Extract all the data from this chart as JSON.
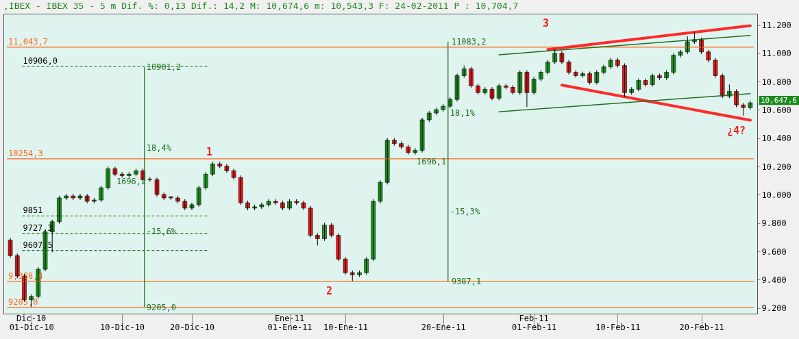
{
  "chart_data": {
    "type": "candlestick",
    "title": ",IBEX - IBEX 35 -  5 m Dif. %: 0,13 Dif.: 14,2 M: 10,674,6 m: 10,543,3 F: 24-02-2011 P : 10,704,7",
    "categories": [
      null,
      null,
      null,
      "01-Dic-10",
      null,
      null,
      null,
      null,
      null,
      null,
      null,
      null,
      null,
      null,
      null,
      null,
      "10-Dic-10",
      null,
      null,
      null,
      null,
      null,
      null,
      null,
      null,
      null,
      "20-Dic-10",
      null,
      null,
      null,
      null,
      null,
      null,
      null,
      null,
      null,
      null,
      null,
      null,
      null,
      "01-Ene-11",
      null,
      null,
      null,
      null,
      null,
      null,
      null,
      "10-Ene-11",
      null,
      null,
      null,
      null,
      null,
      null,
      null,
      null,
      null,
      null,
      null,
      null,
      null,
      "20-Ene-11",
      null,
      null,
      null,
      null,
      null,
      null,
      null,
      null,
      null,
      null,
      null,
      null,
      "01-Feb-11",
      null,
      null,
      null,
      null,
      null,
      null,
      null,
      null,
      null,
      null,
      null,
      "10-Feb-11",
      null,
      null,
      null,
      null,
      null,
      null,
      null,
      null,
      null,
      null,
      null,
      "20-Feb-11",
      null,
      null,
      null,
      null,
      null,
      null,
      null
    ],
    "ohlc": [
      [
        9680,
        9695,
        9555,
        9570
      ],
      [
        9570,
        9585,
        9411,
        9426
      ],
      [
        9426,
        9441,
        9243,
        9258
      ],
      [
        9258,
        9297,
        9205,
        9282
      ],
      [
        9282,
        9489,
        9267,
        9474
      ],
      [
        9474,
        9753,
        9459,
        9738
      ],
      [
        9738,
        9825,
        9594,
        9810
      ],
      [
        9810,
        9993,
        9795,
        9978
      ],
      [
        9978,
        10007,
        9963,
        9992
      ],
      [
        9992,
        10007,
        9963,
        9978
      ],
      [
        9978,
        10007,
        9963,
        9992
      ],
      [
        9992,
        10007,
        9939,
        9954
      ],
      [
        9954,
        9978,
        9939,
        9963
      ],
      [
        9963,
        10065,
        9948,
        10050
      ],
      [
        10050,
        10199,
        10035,
        10184
      ],
      [
        10184,
        10199,
        10131,
        10146
      ],
      [
        10146,
        10161,
        10121,
        10136
      ],
      [
        10136,
        10161,
        10121,
        10146
      ],
      [
        10146,
        10185,
        10131,
        10170
      ],
      [
        10170,
        10185,
        10092,
        10107
      ],
      [
        10110,
        10125,
        10092,
        10107
      ],
      [
        10107,
        10122,
        9987,
        10002
      ],
      [
        10002,
        10017,
        9963,
        9978
      ],
      [
        9985,
        9993,
        9963,
        9978
      ],
      [
        9978,
        9993,
        9939,
        9954
      ],
      [
        9954,
        9969,
        9891,
        9906
      ],
      [
        9906,
        9945,
        9891,
        9930
      ],
      [
        9930,
        10065,
        9915,
        10050
      ],
      [
        10050,
        10161,
        10035,
        10146
      ],
      [
        10146,
        10233,
        10131,
        10218
      ],
      [
        10218,
        10233,
        10188,
        10203
      ],
      [
        10203,
        10218,
        10155,
        10170
      ],
      [
        10170,
        10185,
        10107,
        10122
      ],
      [
        10122,
        10137,
        9929,
        9944
      ],
      [
        9944,
        9959,
        9891,
        9906
      ],
      [
        9906,
        9930,
        9891,
        9915
      ],
      [
        9915,
        9945,
        9900,
        9930
      ],
      [
        9930,
        9969,
        9915,
        9954
      ],
      [
        9954,
        9969,
        9929,
        9944
      ],
      [
        9944,
        9959,
        9891,
        9906
      ],
      [
        9906,
        9969,
        9891,
        9954
      ],
      [
        9954,
        9969,
        9929,
        9944
      ],
      [
        9944,
        9959,
        9891,
        9906
      ],
      [
        9906,
        9921,
        9699,
        9714
      ],
      [
        9714,
        9729,
        9642,
        9690
      ],
      [
        9690,
        9801,
        9675,
        9786
      ],
      [
        9786,
        9801,
        9699,
        9714
      ],
      [
        9714,
        9729,
        9531,
        9546
      ],
      [
        9546,
        9561,
        9435,
        9450
      ],
      [
        9450,
        9465,
        9390,
        9435
      ],
      [
        9435,
        9465,
        9420,
        9450
      ],
      [
        9450,
        9561,
        9435,
        9546
      ],
      [
        9546,
        9969,
        9531,
        9954
      ],
      [
        9954,
        10103,
        9939,
        10088
      ],
      [
        10088,
        10401,
        10073,
        10386
      ],
      [
        10386,
        10401,
        10347,
        10362
      ],
      [
        10362,
        10377,
        10323,
        10338
      ],
      [
        10338,
        10353,
        10284,
        10299
      ],
      [
        10299,
        10329,
        10284,
        10314
      ],
      [
        10314,
        10545,
        10299,
        10530
      ],
      [
        10530,
        10593,
        10515,
        10578
      ],
      [
        10578,
        10617,
        10563,
        10602
      ],
      [
        10602,
        10641,
        10587,
        10626
      ],
      [
        10626,
        10689,
        10611,
        10674
      ],
      [
        10674,
        10857,
        10659,
        10842
      ],
      [
        10842,
        10914,
        10827,
        10890
      ],
      [
        10890,
        10905,
        10755,
        10770
      ],
      [
        10770,
        10785,
        10707,
        10722
      ],
      [
        10722,
        10761,
        10707,
        10746
      ],
      [
        10746,
        10761,
        10668,
        10683
      ],
      [
        10683,
        10785,
        10668,
        10770
      ],
      [
        10770,
        10785,
        10745,
        10760
      ],
      [
        10760,
        10775,
        10707,
        10722
      ],
      [
        10722,
        10881,
        10707,
        10866
      ],
      [
        10866,
        10881,
        10620,
        10722
      ],
      [
        10722,
        10833,
        10707,
        10818
      ],
      [
        10818,
        10881,
        10803,
        10866
      ],
      [
        10866,
        10953,
        10851,
        10938
      ],
      [
        10938,
        11030,
        10923,
        11000
      ],
      [
        11000,
        11015,
        10923,
        10938
      ],
      [
        10938,
        10953,
        10851,
        10866
      ],
      [
        10866,
        10881,
        10827,
        10842
      ],
      [
        10842,
        10871,
        10827,
        10856
      ],
      [
        10856,
        10871,
        10779,
        10794
      ],
      [
        10794,
        10881,
        10779,
        10866
      ],
      [
        10866,
        10919,
        10851,
        10904
      ],
      [
        10904,
        10967,
        10889,
        10952
      ],
      [
        10952,
        10967,
        10899,
        10914
      ],
      [
        10914,
        10929,
        10690,
        10722
      ],
      [
        10722,
        10761,
        10707,
        10746
      ],
      [
        10746,
        10823,
        10731,
        10808
      ],
      [
        10808,
        10823,
        10764,
        10779
      ],
      [
        10779,
        10857,
        10764,
        10842
      ],
      [
        10842,
        10857,
        10812,
        10827
      ],
      [
        10827,
        10881,
        10812,
        10866
      ],
      [
        10866,
        11001,
        10851,
        10986
      ],
      [
        10986,
        11025,
        10971,
        11010
      ],
      [
        11010,
        11120,
        10995,
        11082
      ],
      [
        11082,
        11150,
        11067,
        11096
      ],
      [
        11096,
        11111,
        10995,
        11010
      ],
      [
        11010,
        11025,
        10937,
        10952
      ],
      [
        10952,
        10967,
        10827,
        10842
      ],
      [
        10842,
        10857,
        10683,
        10698
      ],
      [
        10698,
        10780,
        10683,
        10731
      ],
      [
        10731,
        10746,
        10620,
        10635
      ],
      [
        10635,
        10650,
        10560,
        10616
      ],
      [
        10616,
        10665,
        10601,
        10650
      ]
    ],
    "series": [
      {
        "type": "line",
        "color": "#ff2a2a",
        "values": [
          null,
          null,
          null,
          null,
          null,
          null,
          null,
          null,
          null,
          null,
          null,
          null,
          null,
          null,
          null,
          null,
          null,
          null,
          null,
          null,
          null,
          null,
          null,
          null,
          null,
          null,
          null,
          null,
          null,
          null,
          null,
          null,
          null,
          null,
          null,
          null,
          null,
          null,
          null,
          null,
          null,
          null,
          null,
          null,
          null,
          null,
          null,
          null,
          null,
          null,
          null,
          null,
          null,
          null,
          null,
          null,
          null,
          null,
          null,
          null,
          null,
          null,
          null,
          null,
          null,
          null,
          null,
          null,
          null,
          null,
          null,
          null,
          null,
          null,
          null,
          null,
          null,
          11027,
          null,
          null,
          null,
          null,
          null,
          null,
          null,
          null,
          null,
          null,
          null,
          null,
          null,
          null,
          null,
          null,
          null,
          null,
          null,
          null,
          null,
          null,
          null,
          null,
          null,
          null,
          null,
          null,
          11195
        ]
      },
      {
        "type": "line",
        "color": "#ff2a2a",
        "values": [
          null,
          null,
          null,
          null,
          null,
          null,
          null,
          null,
          null,
          null,
          null,
          null,
          null,
          null,
          null,
          null,
          null,
          null,
          null,
          null,
          null,
          null,
          null,
          null,
          null,
          null,
          null,
          null,
          null,
          null,
          null,
          null,
          null,
          null,
          null,
          null,
          null,
          null,
          null,
          null,
          null,
          null,
          null,
          null,
          null,
          null,
          null,
          null,
          null,
          null,
          null,
          null,
          null,
          null,
          null,
          null,
          null,
          null,
          null,
          null,
          null,
          null,
          null,
          null,
          null,
          null,
          null,
          null,
          null,
          null,
          null,
          null,
          null,
          null,
          null,
          null,
          null,
          null,
          null,
          10775,
          null,
          null,
          null,
          null,
          null,
          null,
          null,
          null,
          null,
          null,
          null,
          null,
          null,
          null,
          null,
          null,
          null,
          null,
          null,
          null,
          null,
          null,
          null,
          null,
          null,
          null,
          10527
        ]
      },
      {
        "type": "line",
        "color": "#1f6f1f",
        "values": [
          null,
          null,
          null,
          null,
          null,
          null,
          null,
          null,
          null,
          null,
          null,
          null,
          null,
          null,
          null,
          null,
          null,
          null,
          null,
          null,
          null,
          null,
          null,
          null,
          null,
          null,
          null,
          null,
          null,
          null,
          null,
          null,
          null,
          null,
          null,
          null,
          null,
          null,
          null,
          null,
          null,
          null,
          null,
          null,
          null,
          null,
          null,
          null,
          null,
          null,
          null,
          null,
          null,
          null,
          null,
          null,
          null,
          null,
          null,
          null,
          null,
          null,
          null,
          null,
          null,
          null,
          null,
          null,
          null,
          null,
          10990,
          null,
          null,
          null,
          null,
          null,
          null,
          null,
          null,
          null,
          null,
          null,
          null,
          null,
          null,
          null,
          null,
          null,
          null,
          null,
          null,
          null,
          null,
          null,
          null,
          null,
          null,
          null,
          null,
          null,
          null,
          null,
          null,
          null,
          null,
          null,
          11126
        ]
      },
      {
        "type": "line",
        "color": "#1f6f1f",
        "values": [
          null,
          null,
          null,
          null,
          null,
          null,
          null,
          null,
          null,
          null,
          null,
          null,
          null,
          null,
          null,
          null,
          null,
          null,
          null,
          null,
          null,
          null,
          null,
          null,
          null,
          null,
          null,
          null,
          null,
          null,
          null,
          null,
          null,
          null,
          null,
          null,
          null,
          null,
          null,
          null,
          null,
          null,
          null,
          null,
          null,
          null,
          null,
          null,
          null,
          null,
          null,
          null,
          null,
          null,
          null,
          null,
          null,
          null,
          null,
          null,
          null,
          null,
          null,
          null,
          null,
          null,
          null,
          null,
          null,
          null,
          10587,
          null,
          null,
          null,
          null,
          null,
          null,
          null,
          null,
          null,
          null,
          null,
          null,
          null,
          null,
          null,
          null,
          null,
          null,
          null,
          null,
          null,
          null,
          null,
          null,
          null,
          null,
          null,
          null,
          null,
          null,
          null,
          null,
          null,
          null,
          null,
          10715
        ]
      }
    ],
    "ref_lines": [
      {
        "axis": "y",
        "value": 11043.7,
        "label": "11,043,7",
        "color": "#ff6a1a"
      },
      {
        "axis": "y",
        "value": 10254.3,
        "label": "10254,3",
        "color": "#ff6a1a"
      },
      {
        "axis": "y",
        "value": 9388.4,
        "label": "9,388,4",
        "color": "#ff6a1a"
      },
      {
        "axis": "y",
        "value": 9205.0,
        "label": "9205,0",
        "color": "#ff6a1a"
      },
      {
        "axis": "y",
        "value": 10906.0,
        "label": "10906,0",
        "color": "#1f6f1f",
        "line_style": "dashed"
      },
      {
        "axis": "y",
        "value": 9851,
        "label": "9851",
        "color": "#1f6f1f",
        "line_style": "dashed"
      },
      {
        "axis": "y",
        "value": 9727.3,
        "label": "9727,3",
        "color": "#1f6f1f",
        "line_style": "dashed"
      },
      {
        "axis": "y",
        "value": 9607.5,
        "label": "9607,5",
        "color": "#1f6f1f",
        "line_style": "dashed"
      }
    ],
    "annotations": [
      "1",
      "2",
      "3",
      "¿4?",
      {
        "text": "10901,2",
        "y": 10901.2
      },
      "18,4%",
      "1696,2",
      "-15,6%",
      {
        "text": "9205,0",
        "y": 9205.0
      },
      "11083,2",
      "18,1%",
      "1696,1",
      "-15,3%",
      {
        "text": "9387,1",
        "y": 9387.1
      },
      "10,647,6",
      "Dic-10",
      "Ene-11",
      "Feb-11"
    ],
    "ylim": [
      9160,
      11280
    ],
    "yticks": [
      {
        "value": 9200,
        "label": "9.200"
      },
      {
        "value": 9400,
        "label": "9.400"
      },
      {
        "value": 9600,
        "label": "9.600"
      },
      {
        "value": 9800,
        "label": "9.800"
      },
      {
        "value": 10000,
        "label": "10.000"
      },
      {
        "value": 10200,
        "label": "10.200"
      },
      {
        "value": 10400,
        "label": "10.400"
      },
      {
        "value": 10600,
        "label": "10.600"
      },
      {
        "value": 10800,
        "label": "10.800"
      },
      {
        "value": 11000,
        "label": "11.000"
      },
      {
        "value": 11200,
        "label": "11.200"
      }
    ]
  }
}
